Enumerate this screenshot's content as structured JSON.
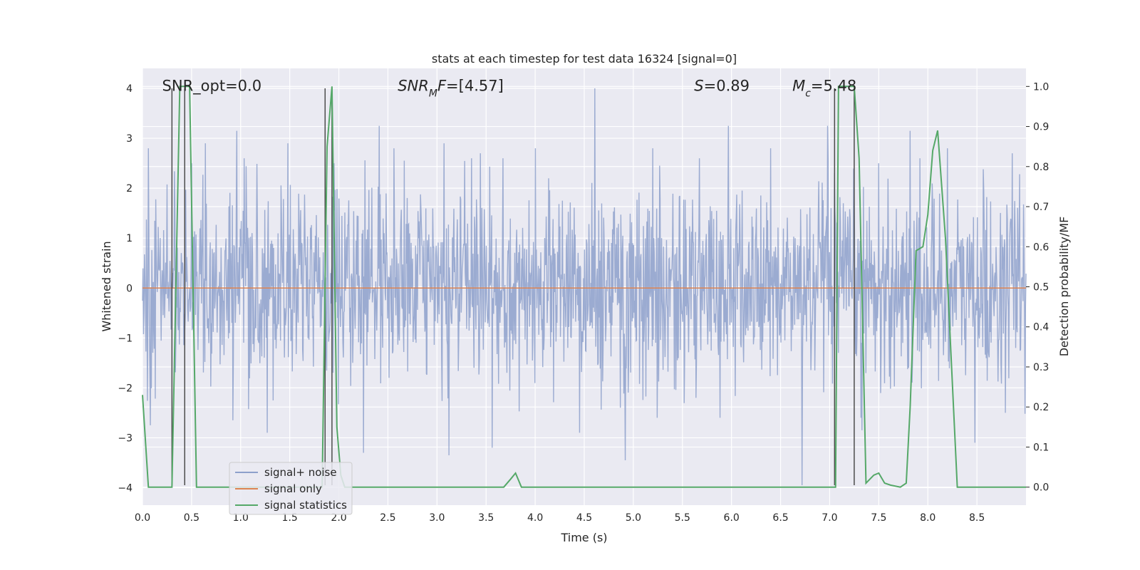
{
  "chart_data": {
    "type": "line",
    "title": "stats at each timestep for test data 16324 [signal=0]",
    "xlabel": "Time (s)",
    "ylabel_left": "Whitened strain",
    "ylabel_right": "Detection probability/MF",
    "xlim": [
      0.0,
      9.0
    ],
    "ylim_left": [
      -4.35,
      4.4
    ],
    "ylim_right": [
      -0.045,
      1.045
    ],
    "x_ticks": [
      "0.0",
      "0.5",
      "1.0",
      "1.5",
      "2.0",
      "2.5",
      "3.0",
      "3.5",
      "4.0",
      "4.5",
      "5.0",
      "5.5",
      "6.0",
      "6.5",
      "7.0",
      "7.5",
      "8.0",
      "8.5"
    ],
    "x_tick_values": [
      0,
      0.5,
      1,
      1.5,
      2,
      2.5,
      3,
      3.5,
      4,
      4.5,
      5,
      5.5,
      6,
      6.5,
      7,
      7.5,
      8,
      8.5
    ],
    "y_left_ticks": [
      "4",
      "3",
      "2",
      "1",
      "0",
      "−1",
      "−2",
      "−3",
      "−4"
    ],
    "y_left_tick_values": [
      4,
      3,
      2,
      1,
      0,
      -1,
      -2,
      -3,
      -4
    ],
    "y_right_ticks": [
      "1.0",
      "0.9",
      "0.8",
      "0.7",
      "0.6",
      "0.5",
      "0.4",
      "0.3",
      "0.2",
      "0.1",
      "0.0"
    ],
    "y_right_tick_values": [
      1.0,
      0.9,
      0.8,
      0.7,
      0.6,
      0.5,
      0.4,
      0.3,
      0.2,
      0.1,
      0.0
    ],
    "annotations": [
      {
        "id": "snr-opt",
        "parts": [
          {
            "t": "SNR_opt=0.0",
            "style": "normal"
          }
        ],
        "x": 0.2,
        "y": 4.05
      },
      {
        "id": "snr-mf",
        "parts": [
          {
            "t": "SNR",
            "style": "italic"
          },
          {
            "t": "M",
            "style": "italic-sub"
          },
          {
            "t": "F",
            "style": "italic"
          },
          {
            "t": "=[4.57]",
            "style": "normal"
          }
        ],
        "x": 2.6,
        "y": 4.05
      },
      {
        "id": "s-value",
        "parts": [
          {
            "t": "S",
            "style": "italic"
          },
          {
            "t": "=0.89",
            "style": "normal"
          }
        ],
        "x": 5.62,
        "y": 4.05
      },
      {
        "id": "mc-value",
        "parts": [
          {
            "t": "M",
            "style": "italic"
          },
          {
            "t": "c",
            "style": "italic-sub"
          },
          {
            "t": "=5.48",
            "style": "normal"
          }
        ],
        "x": 6.62,
        "y": 4.05
      }
    ],
    "legend": {
      "placement": "lower-left",
      "entries": [
        {
          "label": "signal+ noise",
          "color": "#8da0cb"
        },
        {
          "label": "signal only",
          "color": "#dd8452"
        },
        {
          "label": "signal statistics",
          "color": "#55a868"
        }
      ]
    },
    "series": [
      {
        "name": "signal+ noise",
        "axis": "left",
        "color": "#8da0cb",
        "description_values": "noise envelope approx ±1.6 core with peaks to ±3.3",
        "peaks": [
          {
            "x": 0.06,
            "y": 2.8
          },
          {
            "x": 0.5,
            "y": 2.5
          },
          {
            "x": 0.64,
            "y": 2.9
          },
          {
            "x": 0.96,
            "y": 3.15
          },
          {
            "x": 1.48,
            "y": 2.9
          },
          {
            "x": 1.95,
            "y": 2.5
          },
          {
            "x": 2.41,
            "y": 3.25
          },
          {
            "x": 2.56,
            "y": 2.8
          },
          {
            "x": 3.07,
            "y": 2.9
          },
          {
            "x": 3.44,
            "y": 2.7
          },
          {
            "x": 4.0,
            "y": 2.8
          },
          {
            "x": 4.61,
            "y": 4.0
          },
          {
            "x": 5.2,
            "y": 2.8
          },
          {
            "x": 5.97,
            "y": 3.25
          },
          {
            "x": 6.4,
            "y": 2.8
          },
          {
            "x": 6.98,
            "y": 3.25
          },
          {
            "x": 7.5,
            "y": 2.5
          },
          {
            "x": 7.82,
            "y": 3.15
          },
          {
            "x": 8.2,
            "y": 2.8
          },
          {
            "x": 8.86,
            "y": 2.7
          }
        ],
        "troughs": [
          {
            "x": 0.08,
            "y": -2.75
          },
          {
            "x": 0.92,
            "y": -2.65
          },
          {
            "x": 1.27,
            "y": -2.9
          },
          {
            "x": 2.25,
            "y": -3.3
          },
          {
            "x": 3.12,
            "y": -3.35
          },
          {
            "x": 3.56,
            "y": -3.2
          },
          {
            "x": 4.45,
            "y": -2.9
          },
          {
            "x": 4.92,
            "y": -3.45
          },
          {
            "x": 6.72,
            "y": -3.95
          },
          {
            "x": 7.33,
            "y": -2.85
          },
          {
            "x": 8.48,
            "y": -3.1
          },
          {
            "x": 8.79,
            "y": -2.5
          }
        ]
      },
      {
        "name": "signal only",
        "axis": "left",
        "color": "#dd8452",
        "x": [
          0.0,
          9.0
        ],
        "y": [
          0.0,
          0.0
        ]
      },
      {
        "name": "signal statistics",
        "axis": "right",
        "color": "#55a868",
        "x": [
          0.0,
          0.06,
          0.25,
          0.3,
          0.38,
          0.42,
          0.48,
          0.55,
          0.6,
          1.0,
          1.5,
          1.8,
          1.83,
          1.88,
          1.93,
          1.98,
          2.02,
          2.06,
          2.5,
          3.0,
          3.5,
          3.68,
          3.75,
          3.8,
          3.86,
          3.95,
          4.2,
          5.0,
          6.0,
          7.06,
          7.09,
          7.14,
          7.25,
          7.3,
          7.37,
          7.45,
          7.5,
          7.56,
          7.62,
          7.72,
          7.78,
          7.82,
          7.88,
          7.95,
          8.0,
          8.05,
          8.1,
          8.18,
          8.3,
          8.37,
          8.42,
          8.6,
          9.0
        ],
        "y": [
          0.23,
          0.0,
          0.0,
          0.0,
          1.0,
          1.0,
          1.0,
          0.0,
          0.0,
          0.0,
          0.0,
          0.0,
          0.0,
          0.85,
          1.0,
          0.15,
          0.03,
          0.0,
          0.0,
          0.0,
          0.0,
          0.0,
          0.02,
          0.035,
          0.0,
          0.0,
          0.0,
          0.0,
          0.0,
          0.0,
          1.0,
          1.0,
          1.0,
          0.82,
          0.01,
          0.03,
          0.035,
          0.01,
          0.005,
          0.0,
          0.01,
          0.2,
          0.59,
          0.6,
          0.68,
          0.84,
          0.89,
          0.62,
          0.0,
          0.0,
          0.0,
          0.0,
          0.0
        ]
      },
      {
        "name": "detection markers",
        "axis": "left",
        "color": "#4c4c4c",
        "x": [
          0.3,
          0.43,
          1.86,
          1.93,
          7.05,
          7.25
        ],
        "y_top": 4.0,
        "y_bottom": -3.95
      }
    ]
  }
}
